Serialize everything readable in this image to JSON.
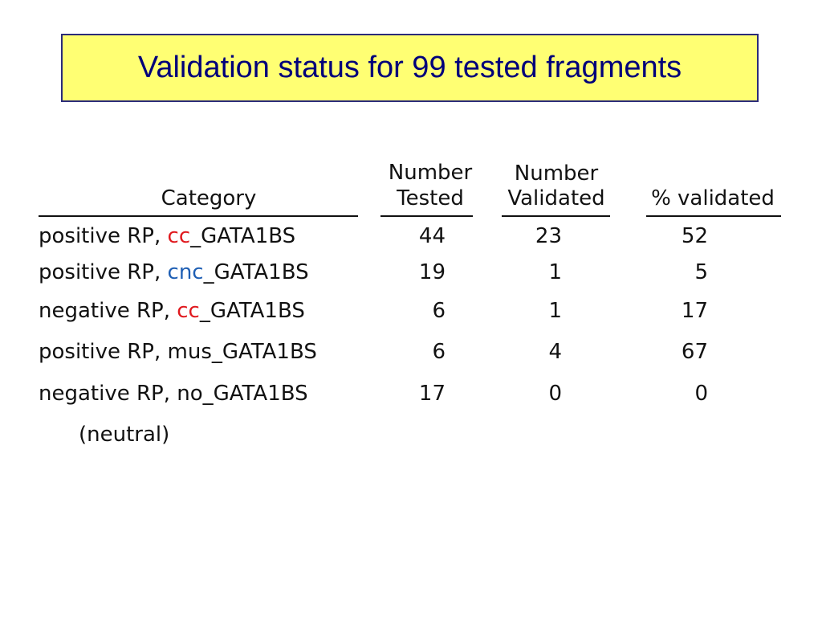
{
  "title": "Validation status for 99 tested fragments",
  "colors": {
    "title_bg": "#ffff73",
    "title_border": "#2b2b7a",
    "title_text": "#00007a",
    "cc": "#e0191e",
    "cnc": "#1f5fb4"
  },
  "headers": {
    "category": "Category",
    "tested_1": "Number",
    "tested_2": "Tested",
    "validated_1": "Number",
    "validated_2": "Validated",
    "percent": "% validated"
  },
  "rows": [
    {
      "prefix": "positive RP, ",
      "tag": "cc",
      "suffix": "_GATA1BS",
      "tested": "44",
      "validated": "23",
      "percent": "52"
    },
    {
      "prefix": "positive RP, ",
      "tag": "cnc",
      "suffix": "_GATA1BS",
      "tested": "19",
      "validated": "1",
      "percent": "5"
    },
    {
      "prefix": "negative RP, ",
      "tag": "cc",
      "suffix": "_GATA1BS",
      "tested": "6",
      "validated": "1",
      "percent": "17"
    },
    {
      "prefix": "positive RP, mus_GATA1BS",
      "tag": "",
      "suffix": "",
      "tested": "6",
      "validated": "4",
      "percent": "67"
    },
    {
      "prefix": "negative RP, no_GATA1BS",
      "tag": "",
      "suffix": "",
      "tested": "17",
      "validated": "0",
      "percent": "0"
    }
  ],
  "note": "(neutral)"
}
